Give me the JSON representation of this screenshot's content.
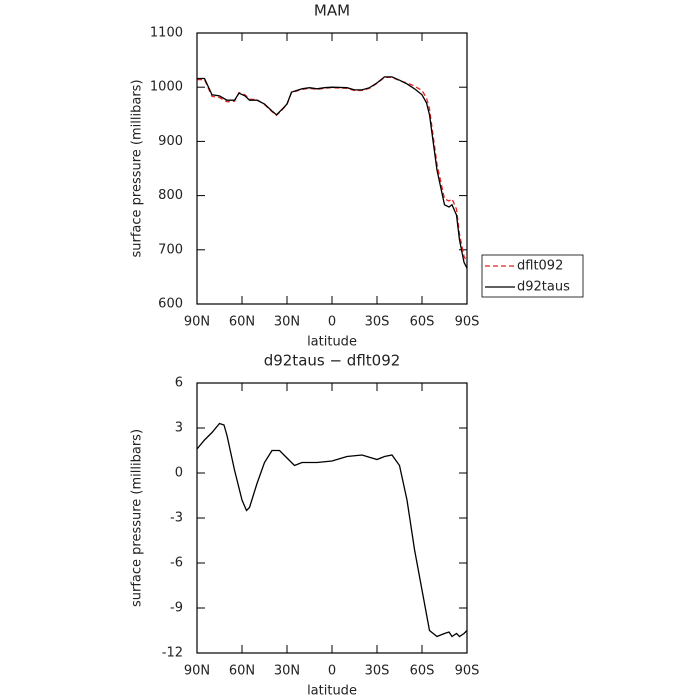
{
  "chart_data": [
    {
      "type": "line",
      "title": "MAM",
      "xlabel": "latitude",
      "ylabel": "surface pressure (millibars)",
      "x": [
        90,
        85,
        80,
        75,
        70,
        65,
        62,
        58,
        55,
        50,
        45,
        40,
        37,
        33,
        30,
        27,
        20,
        15,
        10,
        5,
        0,
        -10,
        -15,
        -20,
        -25,
        -30,
        -35,
        -40,
        -45,
        -50,
        -55,
        -60,
        -63,
        -65,
        -70,
        -75,
        -78,
        -80,
        -83,
        -85,
        -88,
        -90
      ],
      "series": [
        {
          "name": "dflt092",
          "color": "#e8231f",
          "line_style": "dashed",
          "values": [
            1014,
            1014,
            983,
            981,
            973,
            974,
            990,
            986,
            978,
            977,
            968,
            955,
            948,
            959,
            968,
            990,
            996,
            998,
            996,
            998,
            999,
            998,
            994,
            994,
            998,
            1007,
            1018,
            1018,
            1012,
            1008,
            1002,
            994,
            980,
            960,
            858,
            794,
            790,
            794,
            775,
            729,
            688,
            677
          ]
        },
        {
          "name": "d92taus",
          "color": "#000000",
          "line_style": "solid",
          "values": [
            1016,
            1016,
            986,
            984,
            976,
            976,
            989,
            984,
            976,
            976,
            969,
            956,
            949,
            960,
            969,
            991,
            997,
            999,
            997,
            999,
            1000,
            999,
            995,
            995,
            999,
            1008,
            1019,
            1019,
            1013,
            1006,
            997,
            986,
            971,
            949,
            847,
            783,
            779,
            783,
            764,
            718,
            677,
            666
          ]
        }
      ],
      "xlim": [
        90,
        -90
      ],
      "xticks": [
        {
          "value": 90,
          "label": "90N"
        },
        {
          "value": 60,
          "label": "60N"
        },
        {
          "value": 30,
          "label": "30N"
        },
        0,
        {
          "value": -30,
          "label": "30S"
        },
        {
          "value": -60,
          "label": "60S"
        },
        {
          "value": -90,
          "label": "90S"
        }
      ],
      "ylim": [
        600,
        1100
      ],
      "yticks": [
        600,
        700,
        800,
        900,
        1000,
        1100
      ],
      "legend": "right"
    },
    {
      "type": "line",
      "title": "d92taus − dflt092",
      "xlabel": "latitude",
      "ylabel": "surface pressure (millibars)",
      "x": [
        90,
        85,
        80,
        75,
        72,
        70,
        65,
        60,
        57,
        55,
        50,
        45,
        40,
        35,
        30,
        25,
        20,
        10,
        0,
        -10,
        -20,
        -30,
        -35,
        -40,
        -45,
        -50,
        -55,
        -60,
        -65,
        -70,
        -75,
        -78,
        -80,
        -83,
        -85,
        -88,
        -90
      ],
      "series": [
        {
          "name": "d92taus − dflt092",
          "color": "#000000",
          "line_style": "solid",
          "values": [
            1.6,
            2.2,
            2.7,
            3.3,
            3.2,
            2.5,
            0.2,
            -1.8,
            -2.5,
            -2.3,
            -0.7,
            0.7,
            1.5,
            1.5,
            1.0,
            0.5,
            0.7,
            0.7,
            0.8,
            1.1,
            1.2,
            0.9,
            1.1,
            1.2,
            0.5,
            -1.8,
            -5.1,
            -7.8,
            -10.5,
            -10.9,
            -10.7,
            -10.6,
            -10.9,
            -10.7,
            -10.9,
            -10.7,
            -10.5
          ]
        }
      ],
      "xlim": [
        90,
        -90
      ],
      "xticks": [
        {
          "value": 90,
          "label": "90N"
        },
        {
          "value": 60,
          "label": "60N"
        },
        {
          "value": 30,
          "label": "30N"
        },
        0,
        {
          "value": -30,
          "label": "30S"
        },
        {
          "value": -60,
          "label": "60S"
        },
        {
          "value": -90,
          "label": "90S"
        }
      ],
      "ylim": [
        -12,
        6
      ],
      "yticks": [
        -12,
        -9,
        -6,
        -3,
        0,
        3,
        6
      ]
    }
  ]
}
